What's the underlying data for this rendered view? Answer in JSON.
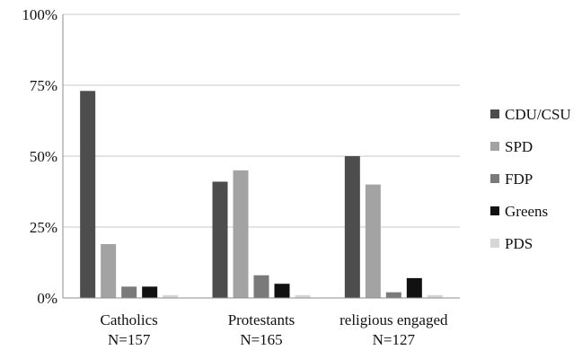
{
  "chart_data": {
    "type": "bar",
    "title": "",
    "xlabel": "",
    "ylabel": "",
    "ylim": [
      0,
      100
    ],
    "yticks": [
      "0%",
      "25%",
      "50%",
      "75%",
      "100%"
    ],
    "ytick_values": [
      0,
      25,
      50,
      75,
      100
    ],
    "grid": true,
    "legend_position": "right",
    "categories": [
      {
        "line1": "Catholics",
        "line2": "N=157"
      },
      {
        "line1": "Protestants",
        "line2": "N=165"
      },
      {
        "line1": "religious engaged",
        "line2": "N=127"
      }
    ],
    "series": [
      {
        "name": "CDU/CSU",
        "color": "#4d4d4d",
        "values": [
          73,
          41,
          50
        ]
      },
      {
        "name": "SPD",
        "color": "#a3a3a3",
        "values": [
          19,
          45,
          40
        ]
      },
      {
        "name": "FDP",
        "color": "#7a7a7a",
        "values": [
          4,
          8,
          2
        ]
      },
      {
        "name": "Greens",
        "color": "#111111",
        "values": [
          4,
          5,
          7
        ]
      },
      {
        "name": "PDS",
        "color": "#d6d6d6",
        "values": [
          1,
          1,
          1
        ]
      }
    ]
  }
}
